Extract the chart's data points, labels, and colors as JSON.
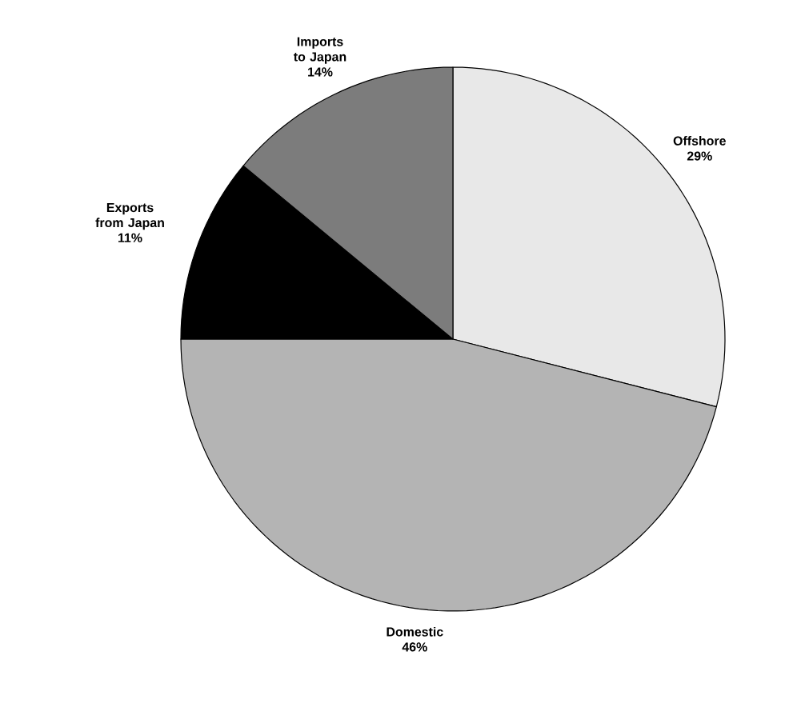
{
  "chart_data": {
    "type": "pie",
    "categories": [
      "Offshore",
      "Domestic",
      "Exports from Japan",
      "Imports to Japan"
    ],
    "values": [
      29,
      46,
      11,
      14
    ],
    "value_labels": [
      "29%",
      "46%",
      "11%",
      "14%"
    ],
    "colors": [
      "#e8e8e8",
      "#b4b4b4",
      "#000000",
      "#7c7c7c"
    ]
  }
}
